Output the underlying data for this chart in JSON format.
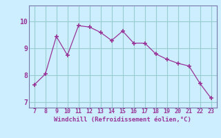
{
  "x": [
    7,
    8,
    9,
    10,
    11,
    12,
    13,
    14,
    15,
    16,
    17,
    18,
    19,
    20,
    21,
    22,
    23
  ],
  "y": [
    7.65,
    8.05,
    9.45,
    8.75,
    9.85,
    9.8,
    9.6,
    9.3,
    9.65,
    9.2,
    9.2,
    8.8,
    8.6,
    8.45,
    8.35,
    7.7,
    7.15
  ],
  "xlabel": "Windchill (Refroidissement éolien,°C)",
  "xlim": [
    6.5,
    23.5
  ],
  "ylim": [
    6.8,
    10.6
  ],
  "xticks": [
    7,
    8,
    9,
    10,
    11,
    12,
    13,
    14,
    15,
    16,
    17,
    18,
    19,
    20,
    21,
    22,
    23
  ],
  "yticks": [
    7,
    8,
    9,
    10
  ],
  "line_color": "#993399",
  "marker": "+",
  "bg_color": "#cceeff",
  "grid_color": "#99cccc",
  "label_color": "#993399",
  "spine_color": "#7777aa"
}
